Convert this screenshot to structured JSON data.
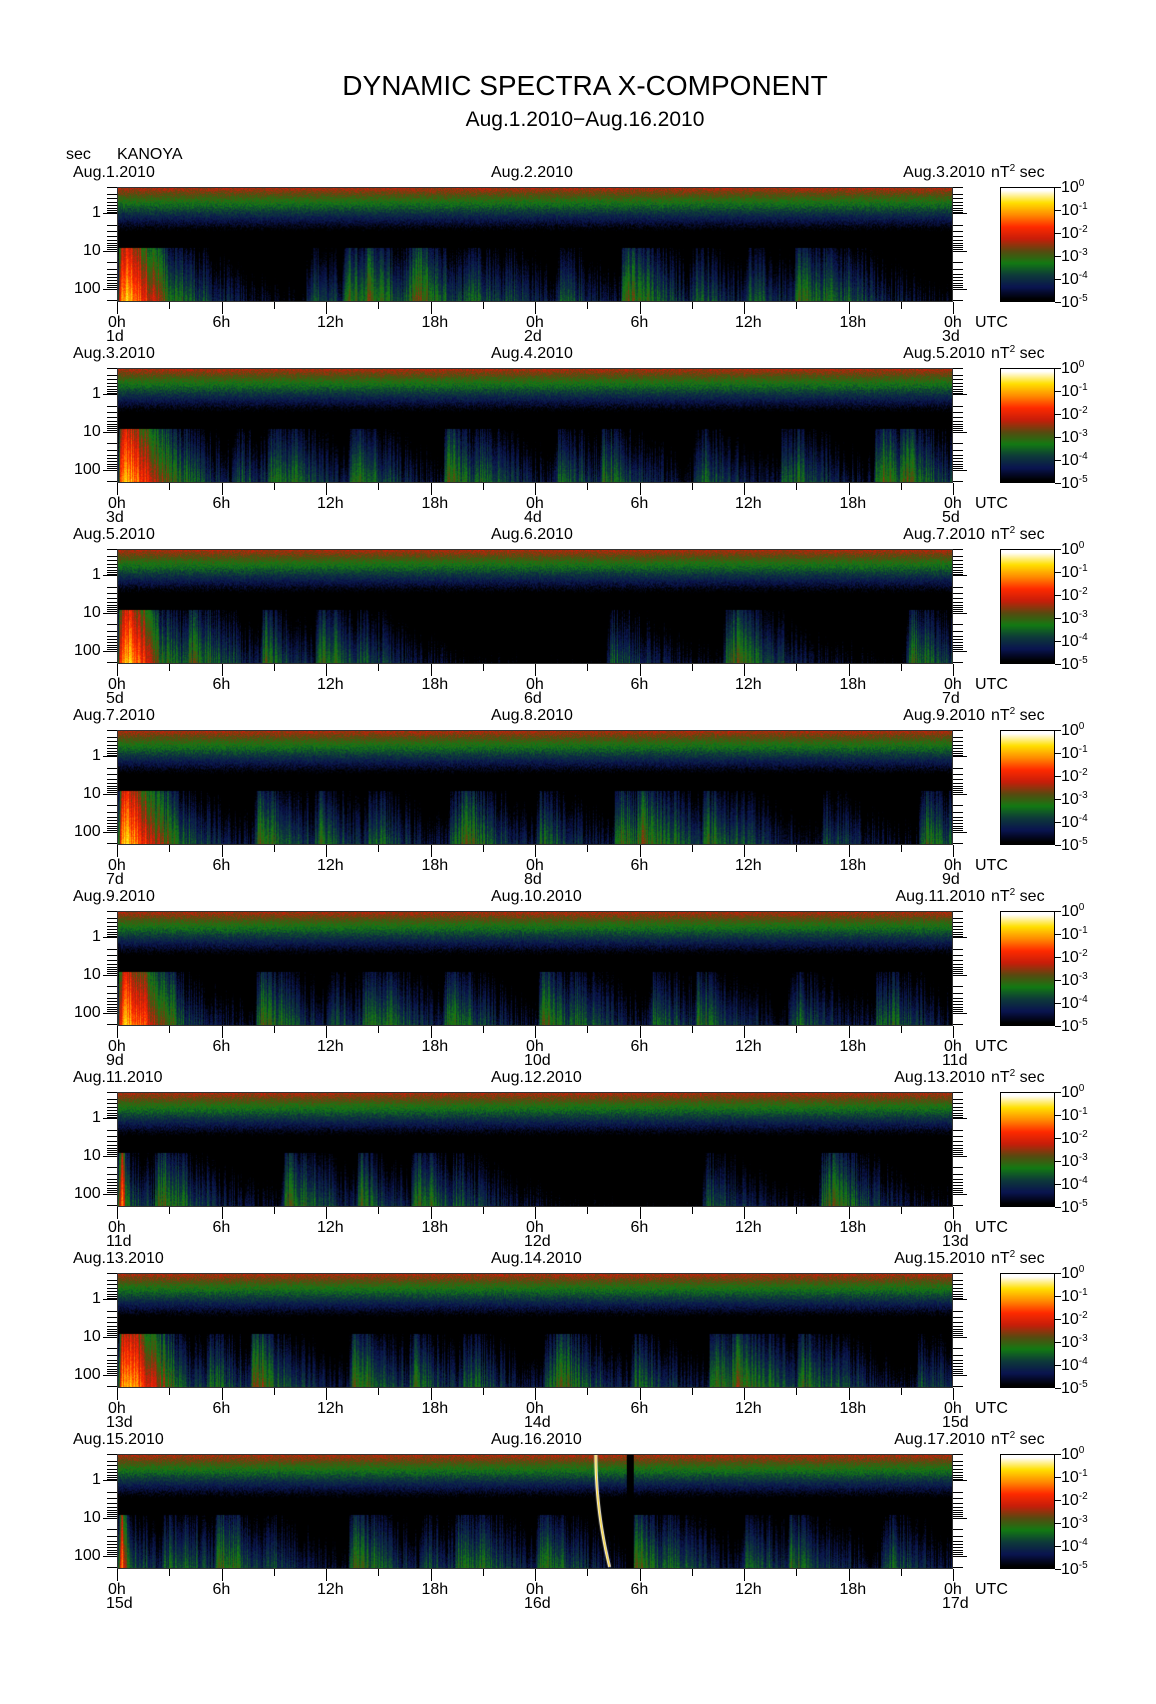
{
  "title": "DYNAMIC SPECTRA X-COMPONENT",
  "subtitle": "Aug.1.2010−Aug.16.2010",
  "station": "KANOYA",
  "chart_data": {
    "type": "heatmap",
    "title": "DYNAMIC SPECTRA X-COMPONENT",
    "subtitle": "Aug.1.2010−Aug.16.2010",
    "ylabel": "sec",
    "xlabel": "UTC",
    "y_scale": "log",
    "y_ticks": [
      "1",
      "10",
      "100"
    ],
    "x_ticks": [
      "0h",
      "6h",
      "12h",
      "18h",
      "0h",
      "6h",
      "12h",
      "18h",
      "0h"
    ],
    "colorbar": {
      "unit_base": "nT",
      "unit_exp": "2",
      "unit_suffix": "sec",
      "scale": "log",
      "ticks": [
        {
          "base": "10",
          "exp": "0"
        },
        {
          "base": "10",
          "exp": "-1"
        },
        {
          "base": "10",
          "exp": "-2"
        },
        {
          "base": "10",
          "exp": "-3"
        },
        {
          "base": "10",
          "exp": "-4"
        },
        {
          "base": "10",
          "exp": "-5"
        }
      ],
      "colors": [
        "#000000",
        "#0a1450",
        "#0e3a3a",
        "#137a13",
        "#5a4a10",
        "#c81e0a",
        "#ff2a00",
        "#ff8c00",
        "#ffe000",
        "#ffffff"
      ]
    },
    "panels": [
      {
        "dates": [
          "Aug.1.2010",
          "Aug.2.2010",
          "Aug.3.2010"
        ],
        "days": [
          "1d",
          "2d",
          "3d"
        ]
      },
      {
        "dates": [
          "Aug.3.2010",
          "Aug.4.2010",
          "Aug.5.2010"
        ],
        "days": [
          "3d",
          "4d",
          "5d"
        ]
      },
      {
        "dates": [
          "Aug.5.2010",
          "Aug.6.2010",
          "Aug.7.2010"
        ],
        "days": [
          "5d",
          "6d",
          "7d"
        ]
      },
      {
        "dates": [
          "Aug.7.2010",
          "Aug.8.2010",
          "Aug.9.2010"
        ],
        "days": [
          "7d",
          "8d",
          "9d"
        ]
      },
      {
        "dates": [
          "Aug.9.2010",
          "Aug.10.2010",
          "Aug.11.2010"
        ],
        "days": [
          "9d",
          "10d",
          "11d"
        ]
      },
      {
        "dates": [
          "Aug.11.2010",
          "Aug.12.2010",
          "Aug.13.2010"
        ],
        "days": [
          "11d",
          "12d",
          "13d"
        ]
      },
      {
        "dates": [
          "Aug.13.2010",
          "Aug.14.2010",
          "Aug.15.2010"
        ],
        "days": [
          "13d",
          "14d",
          "15d"
        ]
      },
      {
        "dates": [
          "Aug.15.2010",
          "Aug.16.2010",
          "Aug.17.2010"
        ],
        "days": [
          "15d",
          "16d",
          "17d"
        ]
      }
    ]
  }
}
